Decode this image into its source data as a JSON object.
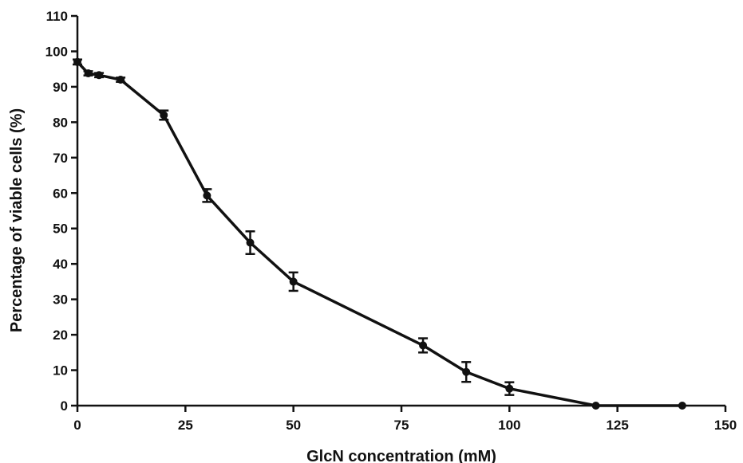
{
  "chart_data": {
    "type": "line",
    "title": "",
    "xlabel": "GlcN concentration (mM)",
    "ylabel": "Percentage of viable cells (%)",
    "xlim": [
      0,
      150
    ],
    "ylim": [
      0,
      110
    ],
    "xticks": [
      0,
      25,
      50,
      75,
      100,
      125,
      150
    ],
    "yticks": [
      0,
      10,
      20,
      30,
      40,
      50,
      60,
      70,
      80,
      90,
      100,
      110
    ],
    "grid": false,
    "legend": "none",
    "series": [
      {
        "x": [
          0,
          2.5,
          5,
          10,
          20,
          30,
          40,
          50,
          80,
          90,
          100,
          120,
          140
        ],
        "y": [
          97,
          93.8,
          93.3,
          92,
          82,
          59.3,
          46,
          35,
          17,
          9.5,
          4.8,
          0,
          0
        ],
        "error": [
          0.7,
          0.6,
          0.6,
          0.6,
          1.3,
          1.8,
          3.2,
          2.6,
          2,
          2.8,
          1.8,
          0.3,
          0.3
        ]
      }
    ],
    "colors": {
      "line": "#111111",
      "marker": "#111111",
      "axis": "#111111"
    }
  }
}
